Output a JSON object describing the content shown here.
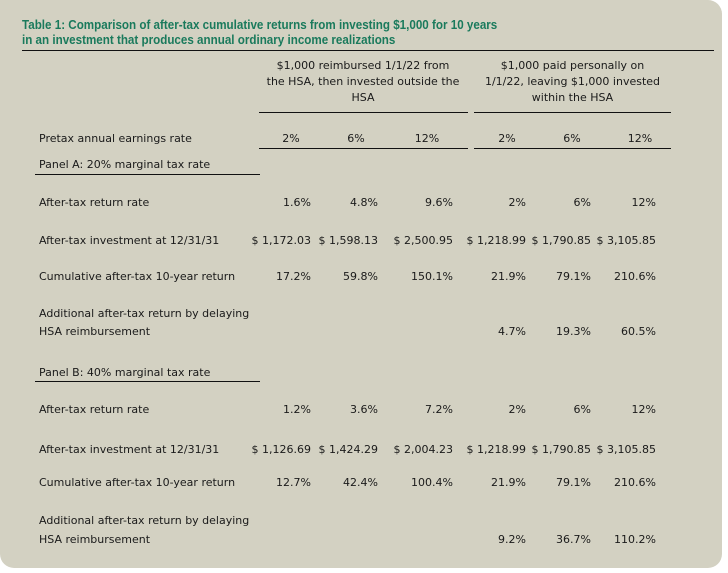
{
  "title": {
    "line1": "Table 1: Comparison of after-tax cumulative returns from investing $1,000 for 10 years",
    "line2": "in an investment that produces annual ordinary income realizations"
  },
  "colors": {
    "panel": "#d3d1c2",
    "title": "#1a7a5c"
  },
  "groups": [
    {
      "lines": [
        "$1,000 reimbursed 1/1/22 from",
        "the HSA, then invested outside the",
        "HSA"
      ]
    },
    {
      "lines": [
        "$1,000 paid personally on",
        "1/1/22, leaving $1,000 invested",
        "within the HSA"
      ]
    }
  ],
  "pretax": {
    "label": "Pretax annual earnings rate",
    "values": [
      "2%",
      "6%",
      "12%",
      "2%",
      "6%",
      "12%"
    ]
  },
  "panels": [
    {
      "title": "Panel A: 20% marginal tax rate",
      "rows": [
        {
          "label": "After-tax return rate",
          "values": [
            "1.6%",
            "4.8%",
            "9.6%",
            "2%",
            "6%",
            "12%"
          ]
        },
        {
          "label": "After-tax investment at 12/31/31",
          "values": [
            "$ 1,172.03",
            "$ 1,598.13",
            "$ 2,500.95",
            "$ 1,218.99",
            "$ 1,790.85",
            "$ 3,105.85"
          ]
        },
        {
          "label": "Cumulative after-tax 10-year return",
          "values": [
            "17.2%",
            "59.8%",
            "150.1%",
            "21.9%",
            "79.1%",
            "210.6%"
          ]
        },
        {
          "label_line1": "Additional after-tax return by delaying",
          "label_line2": "HSA reimbursement",
          "values": [
            "",
            "",
            "",
            "4.7%",
            "19.3%",
            "60.5%"
          ]
        }
      ]
    },
    {
      "title": "Panel B: 40% marginal tax rate",
      "rows": [
        {
          "label": "After-tax return rate",
          "values": [
            "1.2%",
            "3.6%",
            "7.2%",
            "2%",
            "6%",
            "12%"
          ]
        },
        {
          "label": "After-tax investment at 12/31/31",
          "values": [
            "$ 1,126.69",
            "$ 1,424.29",
            "$ 2,004.23",
            "$ 1,218.99",
            "$ 1,790.85",
            "$ 3,105.85"
          ]
        },
        {
          "label": "Cumulative after-tax 10-year return",
          "values": [
            "12.7%",
            "42.4%",
            "100.4%",
            "21.9%",
            "79.1%",
            "210.6%"
          ]
        },
        {
          "label_line1": "Additional after-tax return by delaying",
          "label_line2": "HSA reimbursement",
          "values": [
            "",
            "",
            "",
            "9.2%",
            "36.7%",
            "110.2%"
          ]
        }
      ]
    }
  ]
}
